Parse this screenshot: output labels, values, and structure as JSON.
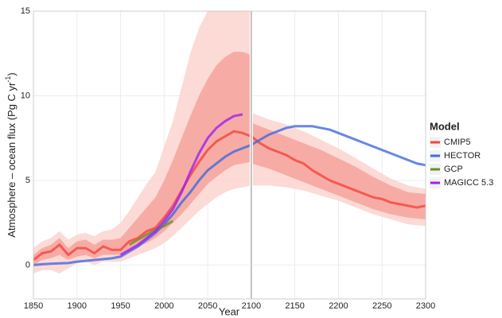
{
  "chart_data": {
    "type": "line",
    "xlabel": "Year",
    "ylabel": {
      "text": "Atmosphere – ocean flux (Pg C yr",
      "sup": "-1",
      "end": ")"
    },
    "legend_title": "Model",
    "xlim": [
      1850,
      2300
    ],
    "ylim": [
      -2,
      15
    ],
    "xticks": [
      1850,
      1900,
      1950,
      2000,
      2050,
      2100,
      2150,
      2200,
      2250,
      2300
    ],
    "yticks": [
      0,
      5,
      10,
      15
    ],
    "grid": true,
    "vline": 2100,
    "x": [
      1850,
      1860,
      1870,
      1880,
      1890,
      1900,
      1910,
      1920,
      1930,
      1940,
      1950,
      1960,
      1970,
      1980,
      1990,
      2000,
      2010,
      2020,
      2030,
      2040,
      2050,
      2060,
      2070,
      2080,
      2090,
      2100,
      2110,
      2120,
      2130,
      2140,
      2150,
      2160,
      2170,
      2180,
      2190,
      2200,
      2210,
      2220,
      2230,
      2240,
      2250,
      2260,
      2270,
      2280,
      2290,
      2300
    ],
    "bands": [
      {
        "color": "#fbd3cf",
        "x": [
          1850,
          1860,
          1870,
          1880,
          1890,
          1900,
          1910,
          1920,
          1930,
          1940,
          1950,
          1960,
          1970,
          1980,
          1990,
          2000,
          2010,
          2020,
          2030,
          2040,
          2050,
          2060,
          2070,
          2080,
          2090,
          2100
        ],
        "low": [
          -0.5,
          -0.3,
          -0.3,
          -0.5,
          -0.2,
          0.1,
          0.2,
          0,
          0.2,
          0.2,
          0.2,
          0.4,
          0.6,
          0.8,
          1.0,
          1.3,
          1.7,
          2.2,
          2.7,
          3.2,
          3.6,
          4.0,
          4.3,
          4.5,
          4.6,
          4.7
        ],
        "high": [
          1.0,
          1.4,
          1.6,
          2.0,
          1.5,
          1.8,
          1.9,
          1.7,
          2.0,
          2.1,
          2.5,
          3.2,
          4.0,
          4.8,
          5.5,
          7.0,
          8.5,
          10.5,
          12.5,
          14.0,
          15,
          15,
          15,
          15,
          15,
          15
        ]
      },
      {
        "color": "#f5a39c",
        "x": [
          1850,
          1860,
          1870,
          1880,
          1890,
          1900,
          1910,
          1920,
          1930,
          1940,
          1950,
          1960,
          1970,
          1980,
          1990,
          2000,
          2010,
          2020,
          2030,
          2040,
          2050,
          2060,
          2070,
          2080,
          2090,
          2100
        ],
        "low": [
          0,
          0.3,
          0.4,
          0.6,
          0.3,
          0.5,
          0.6,
          0.4,
          0.6,
          0.6,
          0.6,
          0.9,
          1.1,
          1.3,
          1.6,
          2.0,
          2.5,
          3.0,
          3.6,
          4.2,
          4.8,
          5.2,
          5.6,
          5.9,
          6.0,
          6.1
        ],
        "high": [
          0.6,
          1.0,
          1.2,
          1.6,
          1.0,
          1.4,
          1.5,
          1.2,
          1.5,
          1.5,
          1.6,
          2.2,
          2.8,
          3.4,
          4.0,
          5.0,
          6.2,
          7.5,
          8.8,
          10.0,
          11.0,
          11.8,
          12.3,
          12.6,
          12.6,
          12.4
        ]
      },
      {
        "color": "#fbd3cf",
        "x": [
          2100,
          2120,
          2140,
          2160,
          2180,
          2200,
          2220,
          2240,
          2260,
          2280,
          2300
        ],
        "low": [
          4.7,
          4.7,
          4.6,
          4.4,
          4.1,
          3.8,
          3.4,
          3.0,
          2.7,
          2.4,
          2.3
        ],
        "high": [
          9.0,
          8.6,
          8.3,
          7.9,
          7.4,
          6.9,
          6.3,
          5.7,
          5.1,
          4.7,
          4.5
        ]
      },
      {
        "color": "#f5a39c",
        "x": [
          2100,
          2120,
          2140,
          2160,
          2180,
          2200,
          2220,
          2240,
          2260,
          2280,
          2300
        ],
        "low": [
          6.0,
          5.7,
          5.3,
          4.9,
          4.5,
          4.1,
          3.7,
          3.3,
          3.0,
          2.8,
          2.7
        ],
        "high": [
          8.4,
          8.0,
          7.6,
          7.2,
          6.8,
          6.3,
          5.8,
          5.2,
          4.7,
          4.3,
          4.2
        ]
      }
    ],
    "series": [
      {
        "name": "CMIP5",
        "color": "#f8433d",
        "values": [
          0.3,
          0.7,
          0.8,
          1.2,
          0.6,
          1.0,
          1.0,
          0.7,
          1.1,
          0.9,
          0.9,
          1.4,
          1.6,
          2.0,
          2.2,
          2.8,
          3.5,
          4.4,
          5.3,
          6.1,
          6.8,
          7.3,
          7.6,
          7.9,
          7.8,
          7.6,
          7.2,
          6.9,
          6.7,
          6.5,
          6.2,
          6.0,
          5.6,
          5.3,
          5.0,
          4.8,
          4.6,
          4.4,
          4.2,
          4.0,
          3.9,
          3.7,
          3.6,
          3.5,
          3.4,
          3.5
        ]
      },
      {
        "name": "HECTOR",
        "color": "#4169e1",
        "values": [
          0,
          0.05,
          0.08,
          0.1,
          0.12,
          0.2,
          0.25,
          0.3,
          0.35,
          0.4,
          0.5,
          0.8,
          1.1,
          1.5,
          1.9,
          2.4,
          3.0,
          3.7,
          4.3,
          5.0,
          5.6,
          6.0,
          6.4,
          6.7,
          6.9,
          7.1,
          7.4,
          7.7,
          7.9,
          8.1,
          8.2,
          8.2,
          8.2,
          8.1,
          8.0,
          7.8,
          7.6,
          7.4,
          7.2,
          7.0,
          6.8,
          6.6,
          6.4,
          6.2,
          6.0,
          5.9
        ]
      },
      {
        "name": "GCP",
        "color": "#6b8e23",
        "values": [
          null,
          null,
          null,
          null,
          null,
          null,
          null,
          null,
          null,
          null,
          null,
          1.2,
          1.5,
          1.8,
          2.1,
          2.3,
          2.6,
          null,
          null,
          null,
          null,
          null,
          null,
          null,
          null,
          null,
          null,
          null,
          null,
          null,
          null,
          null,
          null,
          null,
          null,
          null,
          null,
          null,
          null,
          null,
          null,
          null,
          null,
          null,
          null,
          null
        ]
      },
      {
        "name": "MAGICC 5.3",
        "color": "#a020f0",
        "values": [
          null,
          null,
          null,
          null,
          null,
          null,
          null,
          null,
          null,
          null,
          0.6,
          0.9,
          1.2,
          1.6,
          2.0,
          2.6,
          3.3,
          4.3,
          5.5,
          6.6,
          7.5,
          8.1,
          8.5,
          8.8,
          8.9,
          null,
          null,
          null,
          null,
          null,
          null,
          null,
          null,
          null,
          null,
          null,
          null,
          null,
          null,
          null,
          null,
          null,
          null,
          null,
          null,
          null
        ]
      }
    ]
  }
}
